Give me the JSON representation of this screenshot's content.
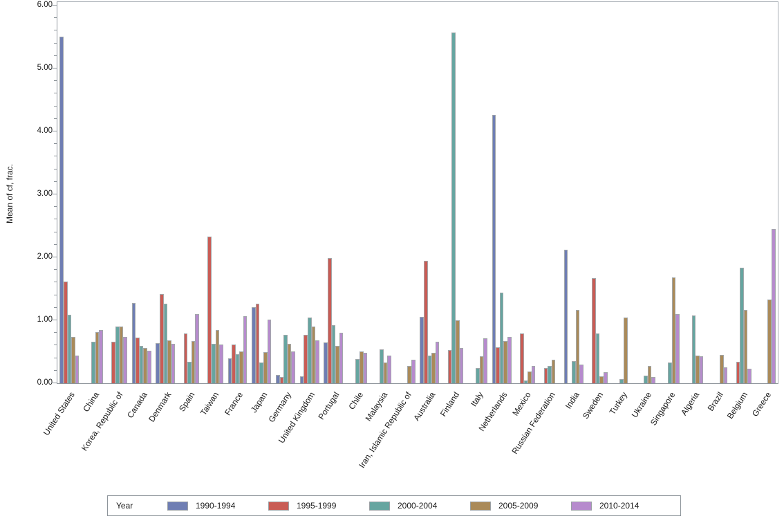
{
  "colors": {
    "background": "#ffffff",
    "axis": "#8e959b",
    "bar_outline": "#a3a8ab",
    "text": "#1a1a1a",
    "legend_border": "#8e959b"
  },
  "chart_data": {
    "type": "bar",
    "title": "",
    "xlabel": "",
    "ylabel": "Mean of cf, frac.",
    "ylim": [
      0,
      6
    ],
    "y_tick_step": 1,
    "y_minor_tick_step": 0.2,
    "y_ticks": [
      "0.00",
      "1.00",
      "2.00",
      "3.00",
      "4.00",
      "5.00",
      "6.00"
    ],
    "grid": false,
    "legend_position": "bottom",
    "legend_title": "Year",
    "categories": [
      "United States",
      "China",
      "Korea, Republic of",
      "Canada",
      "Denmark",
      "Spain",
      "Taiwan",
      "France",
      "Japan",
      "Germany",
      "United Kingdom",
      "Portugal",
      "Chile",
      "Malaysia",
      "Iran, Islamic Republic of",
      "Australia",
      "Finland",
      "Italy",
      "Netherlands",
      "Mexico",
      "Russian Federation",
      "India",
      "Sweden",
      "Turkey",
      "Ukraine",
      "Singapore",
      "Algeria",
      "Brazil",
      "Belgium",
      "Greece"
    ],
    "series": [
      {
        "name": "1990-1994",
        "color": "#6f7eb3",
        "values": [
          5.51,
          0,
          0,
          1.27,
          0.64,
          0,
          0,
          0.4,
          1.21,
          0.13,
          0.11,
          0.65,
          0,
          0,
          0,
          1.06,
          0,
          0,
          4.26,
          0,
          0,
          2.12,
          0,
          0,
          0,
          0,
          0,
          0,
          0,
          0
        ]
      },
      {
        "name": "1995-1999",
        "color": "#c95c55",
        "values": [
          1.62,
          0,
          0.66,
          0.73,
          1.42,
          0.79,
          2.33,
          0.61,
          1.26,
          0.1,
          0.77,
          1.99,
          0,
          0,
          0,
          1.94,
          0.53,
          0,
          0.57,
          0.79,
          0.24,
          0,
          1.67,
          0,
          0,
          0,
          0,
          0,
          0.34,
          0
        ]
      },
      {
        "name": "2000-2004",
        "color": "#66a5a0",
        "values": [
          1.09,
          0.66,
          0.9,
          0.59,
          1.26,
          0.34,
          0.63,
          0.46,
          0.33,
          0.77,
          1.04,
          0.92,
          0.38,
          0.54,
          0,
          0.44,
          5.57,
          0.24,
          1.44,
          0.04,
          0.28,
          0.35,
          0.79,
          0.07,
          0.12,
          0.33,
          1.08,
          0,
          1.83,
          0
        ]
      },
      {
        "name": "2005-2009",
        "color": "#aa8a59",
        "values": [
          0.74,
          0.81,
          0.9,
          0.56,
          0.68,
          0.67,
          0.85,
          0.5,
          0.49,
          0.63,
          0.9,
          0.59,
          0.5,
          0.33,
          0.27,
          0.48,
          1.0,
          0.43,
          0.67,
          0.19,
          0.37,
          1.16,
          0.11,
          1.04,
          0.27,
          1.68,
          0.44,
          0.45,
          1.17,
          1.33
        ]
      },
      {
        "name": "2010-2014",
        "color": "#b68bcd",
        "values": [
          0.44,
          0.85,
          0.74,
          0.52,
          0.63,
          1.1,
          0.62,
          1.07,
          1.01,
          0.5,
          0.68,
          0.8,
          0.48,
          0.44,
          0.37,
          0.66,
          0.56,
          0.71,
          0.74,
          0.28,
          0,
          0.3,
          0.18,
          0,
          0.1,
          1.1,
          0.43,
          0.25,
          0.23,
          2.45
        ]
      }
    ]
  }
}
